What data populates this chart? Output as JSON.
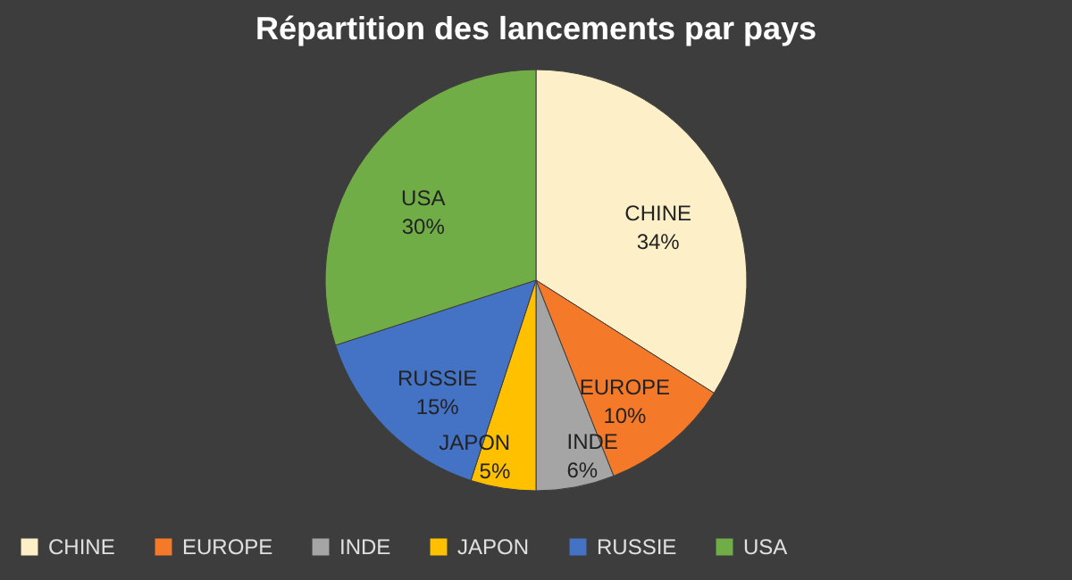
{
  "chart_data": {
    "type": "pie",
    "title": "Répartition des lancements par pays",
    "categories": [
      "CHINE",
      "EUROPE",
      "INDE",
      "JAPON",
      "RUSSIE",
      "USA"
    ],
    "values": [
      34,
      10,
      6,
      5,
      15,
      30
    ],
    "value_labels": [
      "34%",
      "10%",
      "6%",
      "5%",
      "15%",
      "30%"
    ],
    "colors": [
      "#fdf0c8",
      "#f47a2a",
      "#a5a5a5",
      "#ffc000",
      "#4472c4",
      "#70ad47"
    ],
    "legend": "bottom"
  }
}
